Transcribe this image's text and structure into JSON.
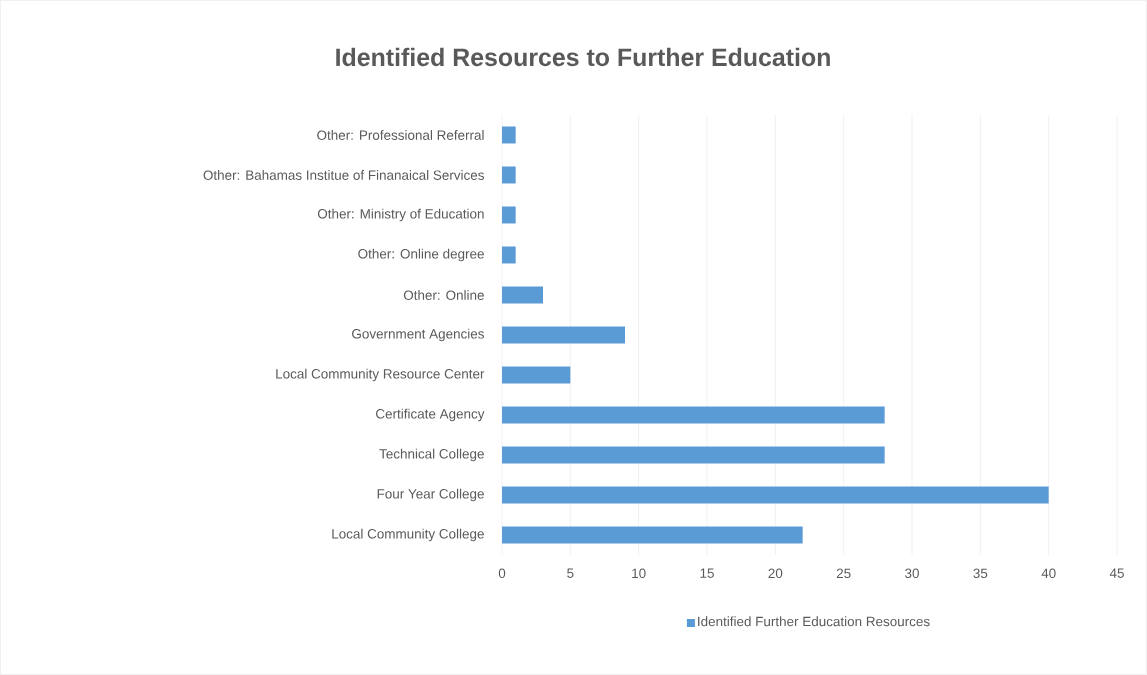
{
  "chart_data": {
    "type": "bar",
    "orientation": "horizontal",
    "title": "Identified Resources to Further Education",
    "categories": [
      "Other: Professional Referral",
      "Other: Bahamas Institue of Finanaical Services",
      "Other: Ministry of Education",
      "Other: Online degree",
      "Other: Online",
      "Government Agencies",
      "Local Community Resource Center",
      "Certificate Agency",
      "Technical College",
      "Four Year College",
      "Local Community College"
    ],
    "series": [
      {
        "name": "Identified Further Education Resources",
        "color": "#5b9bd5",
        "values": [
          1,
          1,
          1,
          1,
          3,
          9,
          5,
          28,
          28,
          40,
          22
        ]
      }
    ],
    "xlim": [
      0,
      45
    ],
    "xticks": [
      0,
      5,
      10,
      15,
      20,
      25,
      30,
      35,
      40,
      45
    ],
    "grid": "x",
    "legend": "bottom"
  }
}
